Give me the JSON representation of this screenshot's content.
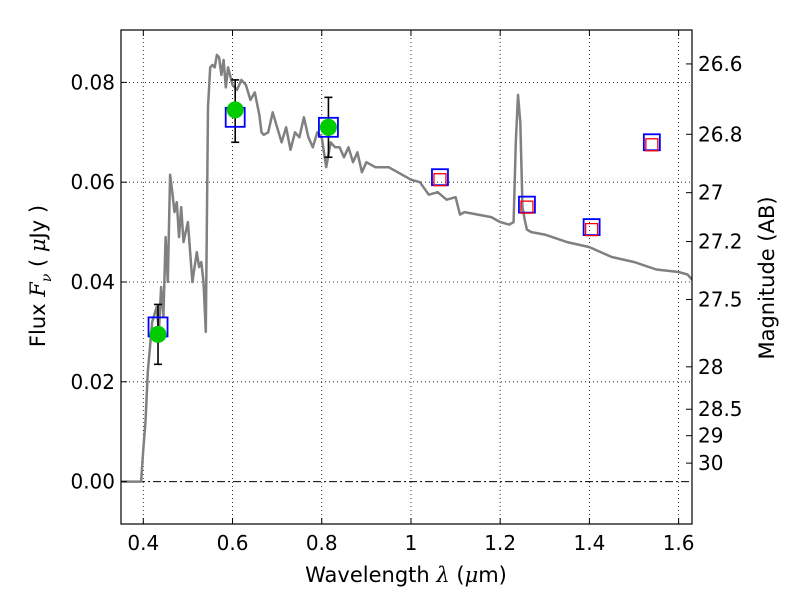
{
  "chart_data": {
    "type": "line",
    "title": "",
    "xlabel": {
      "prefix": "Wavelength  ",
      "symbol": "λ",
      "open": " (",
      "unit_prefix": "μ",
      "unit": "m)"
    },
    "ylabel": {
      "prefix": "Flux  ",
      "symbol": "F",
      "subscript": "ν",
      "open": "  ( ",
      "unit_prefix": "μ",
      "unit": "Jy )"
    },
    "y2label": "Magnitude (AB)",
    "xlim": [
      0.35,
      1.63
    ],
    "ylim": [
      -0.0085,
      0.0905
    ],
    "grid": true,
    "x_ticks": [
      {
        "value": 0.4,
        "label": "0.4"
      },
      {
        "value": 0.6,
        "label": "0.6"
      },
      {
        "value": 0.8,
        "label": "0.8"
      },
      {
        "value": 1.0,
        "label": "1"
      },
      {
        "value": 1.2,
        "label": "1.2"
      },
      {
        "value": 1.4,
        "label": "1.4"
      },
      {
        "value": 1.6,
        "label": "1.6"
      }
    ],
    "y_ticks": [
      {
        "value": 0.0,
        "label": "0.00"
      },
      {
        "value": 0.02,
        "label": "0.02"
      },
      {
        "value": 0.04,
        "label": "0.04"
      },
      {
        "value": 0.06,
        "label": "0.06"
      },
      {
        "value": 0.08,
        "label": "0.08"
      }
    ],
    "mag_ticks": [
      {
        "mag": 26.6,
        "flux": 0.0837,
        "label": "26.6"
      },
      {
        "mag": 26.8,
        "flux": 0.0696,
        "label": "26.8"
      },
      {
        "mag": 27.0,
        "flux": 0.0579,
        "label": "27"
      },
      {
        "mag": 27.2,
        "flux": 0.0481,
        "label": "27.2"
      },
      {
        "mag": 27.5,
        "flux": 0.0365,
        "label": "27.5"
      },
      {
        "mag": 28.0,
        "flux": 0.023,
        "label": "28"
      },
      {
        "mag": 28.5,
        "flux": 0.0145,
        "label": "28.5"
      },
      {
        "mag": 29.0,
        "flux": 0.0092,
        "label": "29"
      },
      {
        "mag": 30.0,
        "flux": 0.0037,
        "label": "30"
      }
    ],
    "series": [
      {
        "name": "model_sed",
        "kind": "line",
        "color": "#808080",
        "x": [
          0.35,
          0.39,
          0.395,
          0.4,
          0.405,
          0.41,
          0.42,
          0.43,
          0.435,
          0.44,
          0.445,
          0.45,
          0.455,
          0.46,
          0.465,
          0.47,
          0.475,
          0.48,
          0.485,
          0.49,
          0.5,
          0.51,
          0.52,
          0.525,
          0.53,
          0.535,
          0.54,
          0.545,
          0.55,
          0.555,
          0.56,
          0.565,
          0.57,
          0.575,
          0.58,
          0.585,
          0.59,
          0.6,
          0.61,
          0.62,
          0.63,
          0.64,
          0.65,
          0.66,
          0.665,
          0.67,
          0.68,
          0.69,
          0.7,
          0.71,
          0.72,
          0.73,
          0.74,
          0.75,
          0.76,
          0.77,
          0.78,
          0.79,
          0.8,
          0.81,
          0.82,
          0.83,
          0.84,
          0.85,
          0.86,
          0.87,
          0.88,
          0.89,
          0.9,
          0.92,
          0.95,
          1.0,
          1.02,
          1.04,
          1.06,
          1.08,
          1.1,
          1.11,
          1.12,
          1.15,
          1.18,
          1.2,
          1.22,
          1.23,
          1.235,
          1.24,
          1.245,
          1.25,
          1.255,
          1.26,
          1.27,
          1.3,
          1.35,
          1.4,
          1.45,
          1.5,
          1.55,
          1.6,
          1.62,
          1.63
        ],
        "y": [
          0.0,
          0.0,
          0.0,
          0.0065,
          0.012,
          0.022,
          0.032,
          0.035,
          0.03,
          0.039,
          0.033,
          0.049,
          0.04,
          0.0615,
          0.058,
          0.054,
          0.056,
          0.049,
          0.055,
          0.048,
          0.052,
          0.04,
          0.046,
          0.043,
          0.044,
          0.04,
          0.03,
          0.075,
          0.083,
          0.0835,
          0.083,
          0.0855,
          0.085,
          0.0815,
          0.0845,
          0.079,
          0.083,
          0.0795,
          0.0785,
          0.0805,
          0.0795,
          0.0765,
          0.078,
          0.0735,
          0.07,
          0.0695,
          0.07,
          0.074,
          0.071,
          0.068,
          0.071,
          0.0665,
          0.07,
          0.069,
          0.073,
          0.069,
          0.067,
          0.07,
          0.069,
          0.063,
          0.068,
          0.067,
          0.067,
          0.065,
          0.067,
          0.064,
          0.066,
          0.062,
          0.064,
          0.063,
          0.063,
          0.0605,
          0.06,
          0.0575,
          0.058,
          0.0565,
          0.057,
          0.0535,
          0.054,
          0.0535,
          0.053,
          0.052,
          0.0515,
          0.052,
          0.068,
          0.0775,
          0.072,
          0.055,
          0.0525,
          0.0505,
          0.05,
          0.0495,
          0.048,
          0.047,
          0.045,
          0.044,
          0.0425,
          0.042,
          0.0415,
          0.0405
        ]
      },
      {
        "name": "observed",
        "kind": "points",
        "color": "#00cc00",
        "x": [
          0.433,
          0.606,
          0.815
        ],
        "y": [
          0.0295,
          0.0745,
          0.071
        ],
        "yerr_low": [
          0.0235,
          0.068,
          0.065
        ],
        "yerr_high": [
          0.0355,
          0.0805,
          0.077
        ]
      },
      {
        "name": "model_bandpass",
        "kind": "squares_large",
        "color": "#0000ff",
        "x": [
          0.433,
          0.606,
          0.815,
          1.065,
          1.26,
          1.405,
          1.54
        ],
        "y": [
          0.031,
          0.073,
          0.071,
          0.061,
          0.0555,
          0.051,
          0.068
        ]
      },
      {
        "name": "model_bandpass_inner",
        "kind": "squares_small",
        "color": "#ff0000",
        "x": [
          1.065,
          1.26,
          1.405,
          1.54
        ],
        "y": [
          0.0605,
          0.055,
          0.0505,
          0.0675
        ]
      }
    ]
  }
}
